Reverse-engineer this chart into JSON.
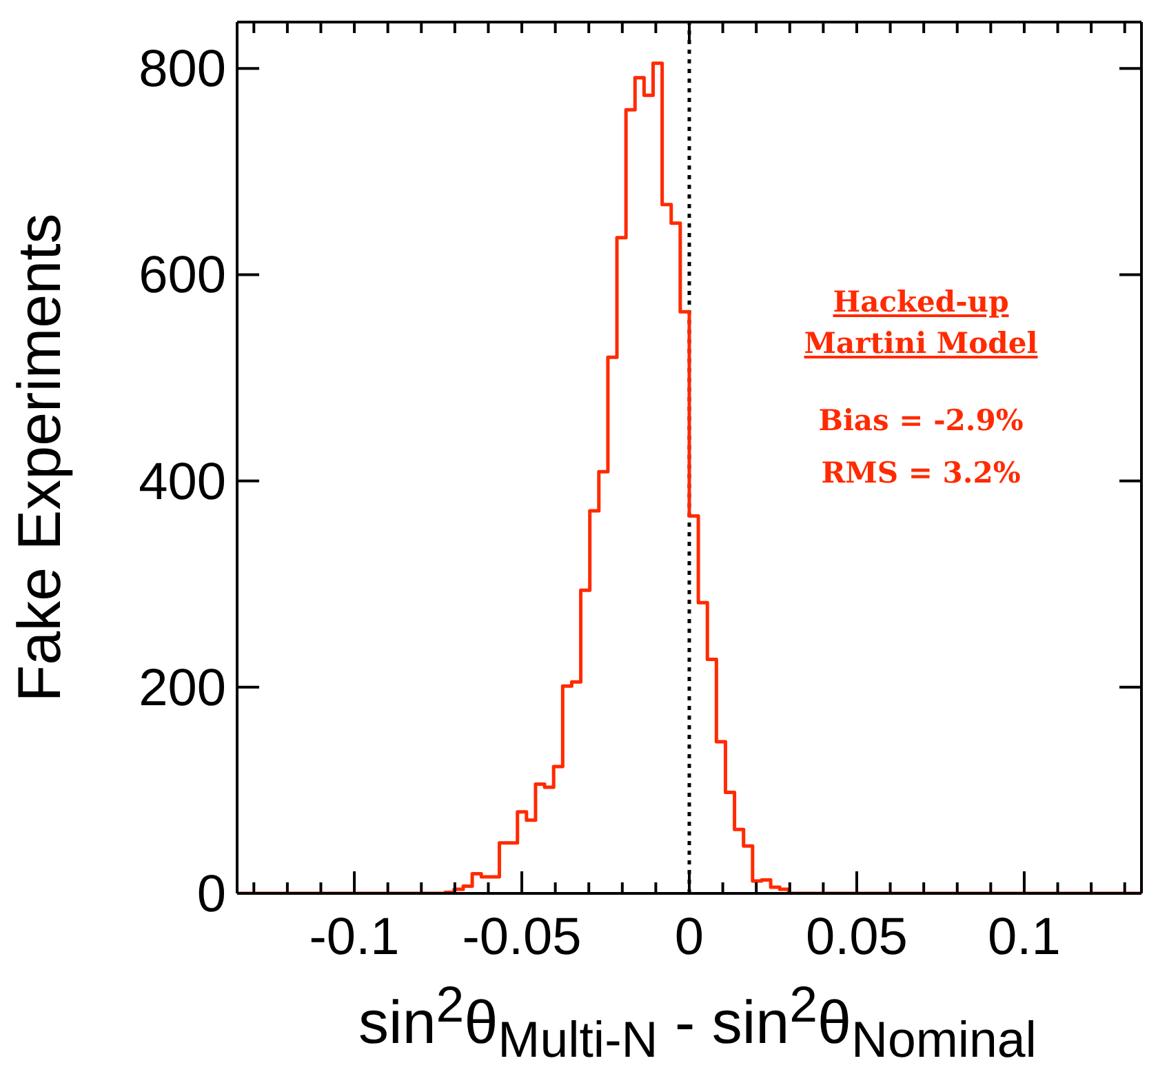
{
  "chart_data": {
    "type": "histogram",
    "xlabel": "sin$^{2}$θ$_{Multi-N}$ - sin$^{2}$θ$_{Nominal}$",
    "ylabel": "Fake Experiments",
    "color": "#ff2a00",
    "bins": [
      -0.135,
      -0.1323,
      -0.1296,
      -0.1269,
      -0.1242,
      -0.1215,
      -0.1188,
      -0.1161,
      -0.1134,
      -0.1107,
      -0.108,
      -0.1053,
      -0.1026,
      -0.0999,
      -0.0972,
      -0.0945,
      -0.0918,
      -0.0891,
      -0.0864,
      -0.0837,
      -0.081,
      -0.0783,
      -0.0756,
      -0.0729,
      -0.0702,
      -0.0675,
      -0.0648,
      -0.0621,
      -0.0594,
      -0.0567,
      -0.054,
      -0.0513,
      -0.0486,
      -0.0459,
      -0.0432,
      -0.0405,
      -0.0378,
      -0.0351,
      -0.0324,
      -0.0297,
      -0.027,
      -0.0243,
      -0.0216,
      -0.0189,
      -0.0162,
      -0.0135,
      -0.0108,
      -0.0081,
      -0.0054,
      -0.0027,
      0,
      0.0027,
      0.0054,
      0.0081,
      0.0108,
      0.0135,
      0.0162,
      0.0189,
      0.0216,
      0.0243,
      0.027,
      0.0297,
      0.0324,
      0.0351,
      0.0378,
      0.0405,
      0.0432,
      0.0459,
      0.0486,
      0.0513,
      0.054,
      0.0567,
      0.0594,
      0.0621,
      0.0648,
      0.0675,
      0.0702,
      0.0729,
      0.0756,
      0.0783,
      0.081,
      0.0837,
      0.0864,
      0.0891,
      0.0918,
      0.0945,
      0.0972,
      0.0999,
      0.1026,
      0.1053,
      0.108,
      0.1107,
      0.1134,
      0.1161,
      0.1188,
      0.1215,
      0.1242,
      0.1269,
      0.1296,
      0.1323,
      0.135
    ],
    "values": [
      0,
      0,
      0,
      0,
      0,
      0,
      0,
      0,
      0,
      0,
      0,
      0,
      0,
      0,
      0,
      0,
      0,
      0,
      0,
      0,
      0,
      0,
      0,
      1,
      4,
      7,
      19,
      16,
      16,
      49,
      49,
      79,
      71,
      106,
      103,
      123,
      201,
      205,
      294,
      371,
      409,
      520,
      636,
      760,
      791,
      774,
      805,
      668,
      650,
      564,
      366,
      282,
      227,
      147,
      98,
      62,
      46,
      12,
      13,
      6,
      4,
      0,
      0,
      0,
      0,
      0,
      0,
      0,
      0,
      0,
      0,
      0,
      0,
      0,
      0,
      0,
      0,
      0,
      0,
      0,
      0,
      0,
      0,
      0,
      0,
      0,
      0,
      0,
      0,
      0,
      0,
      0,
      0,
      0,
      0,
      0,
      0,
      0,
      0,
      0
    ],
    "xlim": [
      -0.135,
      0.135
    ],
    "xticks": [
      {
        "value": -0.13,
        "label": null
      },
      {
        "value": -0.12,
        "label": null
      },
      {
        "value": -0.11,
        "label": null
      },
      {
        "value": -0.1,
        "label": "-0.1"
      },
      {
        "value": -0.09,
        "label": null
      },
      {
        "value": -0.08,
        "label": null
      },
      {
        "value": -0.07,
        "label": null
      },
      {
        "value": -0.06,
        "label": null
      },
      {
        "value": -0.05,
        "label": "-0.05"
      },
      {
        "value": -0.04,
        "label": null
      },
      {
        "value": -0.03,
        "label": null
      },
      {
        "value": -0.02,
        "label": null
      },
      {
        "value": -0.01,
        "label": null
      },
      0,
      {
        "value": 0.01,
        "label": null
      },
      {
        "value": 0.02,
        "label": null
      },
      {
        "value": 0.03,
        "label": null
      },
      {
        "value": 0.04,
        "label": null
      },
      {
        "value": 0.05,
        "label": "0.05"
      },
      {
        "value": 0.06,
        "label": null
      },
      {
        "value": 0.07,
        "label": null
      },
      {
        "value": 0.08,
        "label": null
      },
      {
        "value": 0.09,
        "label": null
      },
      {
        "value": 0.1,
        "label": "0.1"
      },
      {
        "value": 0.11,
        "label": null
      },
      {
        "value": 0.12,
        "label": null
      },
      {
        "value": 0.13,
        "label": null
      }
    ],
    "ylim": [
      0,
      845
    ],
    "yticks": [
      0,
      200,
      400,
      600,
      800
    ],
    "ref_lines": [
      {
        "axis": "x",
        "value": 0,
        "color": "#000000",
        "line_style": "dotted"
      }
    ],
    "annotations": [
      "Hacked-up\nMartini Model",
      "Bias = -2.9%",
      "RMS = 3.2%"
    ]
  }
}
